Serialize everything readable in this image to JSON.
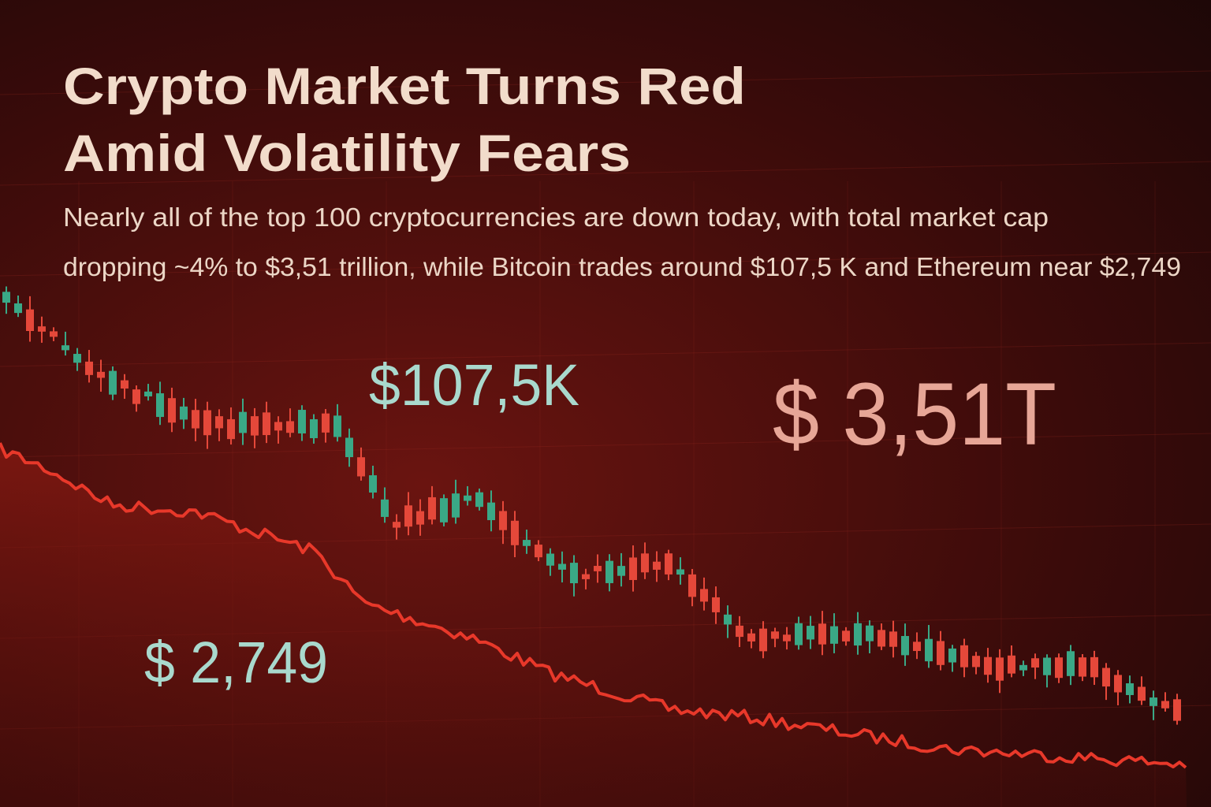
{
  "header": {
    "title": [
      "Crypto Market Turns Red",
      "Amid Volatility Fears"
    ],
    "subtitle": [
      "Nearly all of the top 100 cryptocurrencies are down today, with total market cap",
      "dropping ~4% to $3,51 trillion, while Bitcoin trades around $107,5 K and Ethereum near $2,749"
    ]
  },
  "labels": {
    "bitcoin": "$107,5K",
    "market_cap": "$ 3,51T",
    "ethereum": "$ 2,749"
  }
}
